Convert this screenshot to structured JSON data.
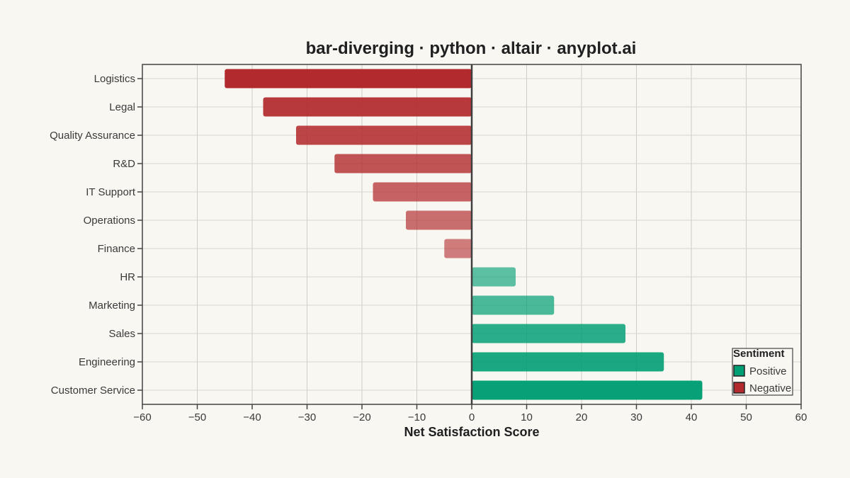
{
  "chart_data": {
    "type": "bar",
    "orientation": "horizontal",
    "title": "bar-diverging · python · altair · anyplot.ai",
    "xlabel": "Net Satisfaction Score",
    "ylabel": "",
    "xlim": [
      -60,
      60
    ],
    "x_ticks": [
      -60,
      -50,
      -40,
      -30,
      -20,
      -10,
      0,
      10,
      20,
      30,
      40,
      50,
      60
    ],
    "x_tick_labels": [
      "−60",
      "−50",
      "−40",
      "−30",
      "−20",
      "−10",
      "0",
      "10",
      "20",
      "30",
      "40",
      "50",
      "60"
    ],
    "grid": true,
    "categories": [
      "Logistics",
      "Legal",
      "Quality Assurance",
      "R&D",
      "IT Support",
      "Operations",
      "Finance",
      "HR",
      "Marketing",
      "Sales",
      "Engineering",
      "Customer Service"
    ],
    "values": [
      -45,
      -38,
      -32,
      -25,
      -18,
      -12,
      -5,
      8,
      15,
      28,
      35,
      42
    ],
    "legend": {
      "title": "Sentiment",
      "position": "bottom-right",
      "entries": [
        {
          "label": "Positive",
          "color": "#009e73"
        },
        {
          "label": "Negative",
          "color": "#b22a2d"
        }
      ]
    },
    "colors": {
      "positive": "#009e73",
      "negative": "#b22a2d"
    }
  }
}
